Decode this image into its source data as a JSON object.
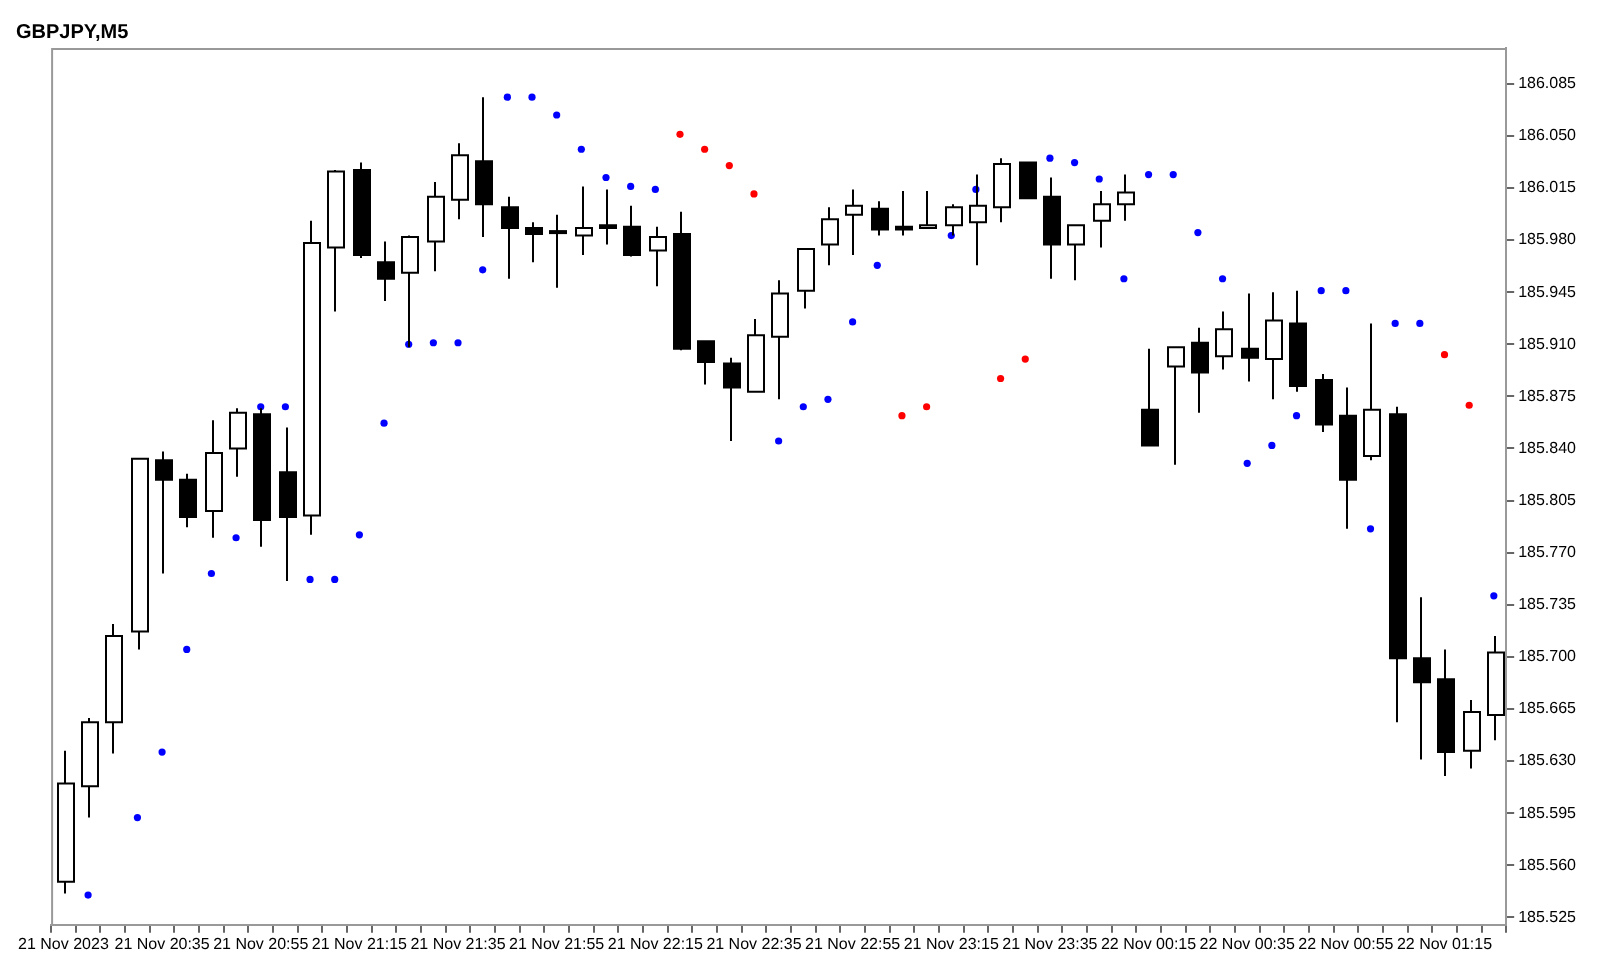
{
  "chart_data": {
    "type": "candlestick",
    "title": "GBPJPY,M5",
    "categories": [
      "21 Nov 2023",
      null,
      null,
      null,
      "21 Nov 20:35",
      null,
      null,
      null,
      "21 Nov 20:55",
      null,
      null,
      null,
      "21 Nov 21:15",
      null,
      null,
      null,
      "21 Nov 21:35",
      null,
      null,
      null,
      "21 Nov 21:55",
      null,
      null,
      null,
      "21 Nov 22:15",
      null,
      null,
      null,
      "21 Nov 22:35",
      null,
      null,
      null,
      "21 Nov 22:55",
      null,
      null,
      null,
      "21 Nov 23:15",
      null,
      null,
      null,
      "21 Nov 23:35",
      null,
      null,
      null,
      "22 Nov 00:15",
      null,
      null,
      null,
      "22 Nov 00:35",
      null,
      null,
      null,
      "22 Nov 00:55",
      null,
      null,
      null,
      "22 Nov 01:15",
      null,
      null
    ],
    "ohlc": [
      [
        185.549,
        185.637,
        185.541,
        185.615
      ],
      [
        185.613,
        185.659,
        185.592,
        185.656
      ],
      [
        185.656,
        185.722,
        185.635,
        185.714
      ],
      [
        185.717,
        185.833,
        185.705,
        185.833
      ],
      [
        185.832,
        185.838,
        185.756,
        185.819
      ],
      [
        185.819,
        185.823,
        185.787,
        185.794
      ],
      [
        185.798,
        185.859,
        185.78,
        185.837
      ],
      [
        185.84,
        185.867,
        185.821,
        185.864
      ],
      [
        185.863,
        185.867,
        185.774,
        185.792
      ],
      [
        185.824,
        185.854,
        185.751,
        185.794
      ],
      [
        185.795,
        185.993,
        185.782,
        185.978
      ],
      [
        185.975,
        186.027,
        185.932,
        186.026
      ],
      [
        186.027,
        186.032,
        185.968,
        185.97
      ],
      [
        185.965,
        185.979,
        185.939,
        185.954
      ],
      [
        185.958,
        185.983,
        185.908,
        185.982
      ],
      [
        185.979,
        186.019,
        185.959,
        186.009
      ],
      [
        186.007,
        186.045,
        185.994,
        186.037
      ],
      [
        186.033,
        186.076,
        185.982,
        186.004
      ],
      [
        186.002,
        186.009,
        185.954,
        185.988
      ],
      [
        185.988,
        185.992,
        185.965,
        185.984
      ],
      [
        185.986,
        185.997,
        185.948,
        185.985
      ],
      [
        185.983,
        186.016,
        185.97,
        185.988
      ],
      [
        185.99,
        186.014,
        185.977,
        185.988
      ],
      [
        185.989,
        186.003,
        185.969,
        185.97
      ],
      [
        185.973,
        185.989,
        185.949,
        185.982
      ],
      [
        185.984,
        185.999,
        185.906,
        185.907
      ],
      [
        185.912,
        185.912,
        185.883,
        185.898
      ],
      [
        185.897,
        185.901,
        185.845,
        185.881
      ],
      [
        185.878,
        185.927,
        185.878,
        185.916
      ],
      [
        185.915,
        185.953,
        185.873,
        185.944
      ],
      [
        185.946,
        185.974,
        185.934,
        185.974
      ],
      [
        185.977,
        186.002,
        185.963,
        185.994
      ],
      [
        185.997,
        186.014,
        185.97,
        186.003
      ],
      [
        186.001,
        186.006,
        185.983,
        185.987
      ],
      [
        185.989,
        186.013,
        185.983,
        185.987
      ],
      [
        185.988,
        186.013,
        185.988,
        185.99
      ],
      [
        185.99,
        186.004,
        185.983,
        186.002
      ],
      [
        185.992,
        186.024,
        185.963,
        186.003
      ],
      [
        186.002,
        186.035,
        185.992,
        186.031
      ],
      [
        186.032,
        186.032,
        186.008,
        186.008
      ],
      [
        186.009,
        186.022,
        185.954,
        185.977
      ],
      [
        185.977,
        185.99,
        185.953,
        185.99
      ],
      [
        185.993,
        186.013,
        185.975,
        186.004
      ],
      [
        186.004,
        186.024,
        185.993,
        186.012
      ],
      [
        185.866,
        185.907,
        185.842,
        185.842
      ],
      [
        185.895,
        185.908,
        185.829,
        185.908
      ],
      [
        185.911,
        185.921,
        185.864,
        185.891
      ],
      [
        185.902,
        185.932,
        185.893,
        185.92
      ],
      [
        185.907,
        185.944,
        185.885,
        185.901
      ],
      [
        185.9,
        185.945,
        185.873,
        185.926
      ],
      [
        185.924,
        185.946,
        185.878,
        185.882
      ],
      [
        185.886,
        185.89,
        185.851,
        185.856
      ],
      [
        185.862,
        185.881,
        185.786,
        185.819
      ],
      [
        185.835,
        185.924,
        185.832,
        185.866
      ],
      [
        185.863,
        185.868,
        185.656,
        185.699
      ],
      [
        185.699,
        185.74,
        185.631,
        185.683
      ],
      [
        185.685,
        185.705,
        185.62,
        185.636
      ],
      [
        185.637,
        185.671,
        185.625,
        185.663
      ],
      [
        185.661,
        185.714,
        185.644,
        185.703
      ]
    ],
    "series": [
      {
        "type": "scatter",
        "values": [
          null,
          185.54,
          null,
          185.592,
          185.636,
          185.705,
          185.756,
          185.78,
          185.868,
          185.868,
          185.752,
          185.752,
          185.782,
          185.857,
          185.91,
          185.911,
          185.911,
          185.96,
          186.076,
          186.076,
          186.064,
          186.041,
          186.022,
          186.016,
          186.014,
          186.051,
          186.041,
          186.03,
          186.011,
          185.845,
          185.868,
          185.873,
          185.925,
          185.963,
          185.862,
          185.868,
          185.983,
          186.014,
          185.887,
          185.9,
          186.035,
          186.032,
          186.021,
          185.954,
          186.024,
          186.024,
          185.985,
          185.954,
          185.83,
          185.842,
          185.862,
          185.946,
          185.946,
          185.786,
          185.924,
          185.924,
          185.903,
          185.869,
          185.741
        ],
        "colors": [
          "#0000ff",
          "#0000ff",
          "#0000ff",
          "#0000ff",
          "#0000ff",
          "#0000ff",
          "#0000ff",
          "#0000ff",
          "#0000ff",
          "#0000ff",
          "#0000ff",
          "#0000ff",
          "#0000ff",
          "#0000ff",
          "#0000ff",
          "#0000ff",
          "#0000ff",
          "#0000ff",
          "#0000ff",
          "#0000ff",
          "#0000ff",
          "#0000ff",
          "#0000ff",
          "#0000ff",
          "#0000ff",
          "#ff0000",
          "#ff0000",
          "#ff0000",
          "#ff0000",
          "#0000ff",
          "#0000ff",
          "#0000ff",
          "#0000ff",
          "#0000ff",
          "#ff0000",
          "#ff0000",
          "#0000ff",
          "#0000ff",
          "#ff0000",
          "#ff0000",
          "#0000ff",
          "#0000ff",
          "#0000ff",
          "#0000ff",
          "#0000ff",
          "#0000ff",
          "#0000ff",
          "#0000ff",
          "#0000ff",
          "#0000ff",
          "#0000ff",
          "#0000ff",
          "#0000ff",
          "#0000ff",
          "#0000ff",
          "#0000ff",
          "#ff0000",
          "#ff0000",
          "#0000ff"
        ]
      }
    ],
    "marker": "circle",
    "ylim": [
      185.52,
      186.109
    ],
    "yticks": [
      185.525,
      {
        "value": 185.56,
        "label": "185.560"
      },
      185.595,
      {
        "value": 185.63,
        "label": "185.630"
      },
      185.665,
      {
        "value": 185.7,
        "label": "185.700"
      },
      185.735,
      {
        "value": 185.77,
        "label": "185.770"
      },
      185.805,
      {
        "value": 185.84,
        "label": "185.840"
      },
      185.875,
      {
        "value": 185.91,
        "label": "185.910"
      },
      185.945,
      {
        "value": 185.98,
        "label": "185.980"
      },
      186.015,
      {
        "value": 186.05,
        "label": "186.050"
      },
      186.085
    ]
  }
}
